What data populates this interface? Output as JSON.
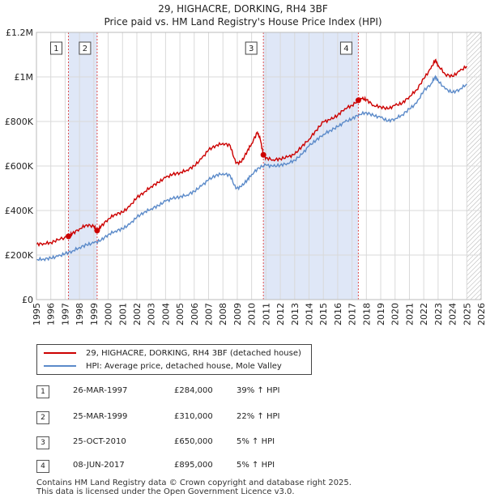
{
  "chart_data": {
    "type": "line",
    "title": "29, HIGHACRE, DORKING, RH4 3BF",
    "subtitle": "Price paid vs. HM Land Registry's House Price Index (HPI)",
    "xlim": [
      1995,
      2026
    ],
    "ylim": [
      0,
      1200000
    ],
    "x_ticks": [
      "1995",
      "1996",
      "1997",
      "1998",
      "1999",
      "2000",
      "2001",
      "2002",
      "2003",
      "2004",
      "2005",
      "2006",
      "2007",
      "2008",
      "2009",
      "2010",
      "2011",
      "2012",
      "2013",
      "2014",
      "2015",
      "2016",
      "2017",
      "2018",
      "2019",
      "2020",
      "2021",
      "2022",
      "2023",
      "2024",
      "2025",
      "2026"
    ],
    "y_ticks": [
      {
        "value": 0,
        "label": "£0"
      },
      {
        "value": 200000,
        "label": "£200K"
      },
      {
        "value": 400000,
        "label": "£400K"
      },
      {
        "value": 600000,
        "label": "£600K"
      },
      {
        "value": 800000,
        "label": "£800K"
      },
      {
        "value": 1000000,
        "label": "£1M"
      },
      {
        "value": 1200000,
        "label": "£1.2M"
      }
    ],
    "grid": true,
    "series": [
      {
        "name": "29, HIGHACRE, DORKING, RH4 3BF (detached house)",
        "color": "#cc0000",
        "x": [
          1995.0,
          1995.5,
          1996.0,
          1996.5,
          1997.23,
          1997.5,
          1998.0,
          1998.5,
          1999.0,
          1999.23,
          1999.5,
          2000.0,
          2000.5,
          2001.0,
          2001.5,
          2002.0,
          2002.5,
          2003.0,
          2003.5,
          2004.0,
          2004.5,
          2005.0,
          2005.5,
          2006.0,
          2006.5,
          2007.0,
          2007.5,
          2008.0,
          2008.5,
          2008.9,
          2009.3,
          2009.7,
          2010.0,
          2010.4,
          2010.6,
          2010.82,
          2011.0,
          2011.5,
          2012.0,
          2012.5,
          2013.0,
          2013.5,
          2014.0,
          2014.5,
          2015.0,
          2015.5,
          2016.0,
          2016.5,
          2017.0,
          2017.44,
          2017.7,
          2018.0,
          2018.5,
          2019.0,
          2019.5,
          2020.0,
          2020.5,
          2021.0,
          2021.5,
          2022.0,
          2022.5,
          2022.8,
          2023.0,
          2023.5,
          2024.0,
          2024.5,
          2025.0
        ],
        "y": [
          248000,
          252000,
          256000,
          268000,
          284000,
          296000,
          318000,
          336000,
          328000,
          310000,
          328000,
          362000,
          384000,
          392000,
          418000,
          458000,
          482000,
          508000,
          526000,
          548000,
          562000,
          570000,
          582000,
          600000,
          632000,
          672000,
          692000,
          702000,
          692000,
          612000,
          618000,
          668000,
          700000,
          752000,
          720000,
          650000,
          636000,
          628000,
          632000,
          640000,
          652000,
          688000,
          720000,
          760000,
          798000,
          808000,
          828000,
          858000,
          872000,
          895000,
          902000,
          898000,
          872000,
          866000,
          856000,
          872000,
          882000,
          912000,
          942000,
          992000,
          1038000,
          1076000,
          1052000,
          1012000,
          1002000,
          1026000,
          1048000
        ]
      },
      {
        "name": "HPI: Average price, detached house, Mole Valley",
        "color": "#5b8ac9",
        "x": [
          1995.0,
          1995.5,
          1996.0,
          1996.5,
          1997.0,
          1997.5,
          1998.0,
          1998.5,
          1999.0,
          1999.5,
          2000.0,
          2000.5,
          2001.0,
          2001.5,
          2002.0,
          2002.5,
          2003.0,
          2003.5,
          2004.0,
          2004.5,
          2005.0,
          2005.5,
          2006.0,
          2006.5,
          2007.0,
          2007.5,
          2008.0,
          2008.5,
          2008.9,
          2009.3,
          2009.7,
          2010.0,
          2010.5,
          2011.0,
          2011.5,
          2012.0,
          2012.5,
          2013.0,
          2013.5,
          2014.0,
          2014.5,
          2015.0,
          2015.5,
          2016.0,
          2016.5,
          2017.0,
          2017.5,
          2018.0,
          2018.5,
          2019.0,
          2019.5,
          2020.0,
          2020.5,
          2021.0,
          2021.5,
          2022.0,
          2022.5,
          2022.8,
          2023.0,
          2023.5,
          2024.0,
          2024.5,
          2025.0
        ],
        "y": [
          180000,
          182000,
          186000,
          194000,
          206000,
          218000,
          234000,
          246000,
          254000,
          266000,
          292000,
          308000,
          318000,
          338000,
          370000,
          392000,
          408000,
          422000,
          442000,
          454000,
          462000,
          470000,
          486000,
          510000,
          538000,
          558000,
          566000,
          558000,
          498000,
          508000,
          538000,
          562000,
          592000,
          604000,
          598000,
          604000,
          612000,
          626000,
          652000,
          690000,
          716000,
          742000,
          760000,
          776000,
          798000,
          812000,
          832000,
          840000,
          826000,
          818000,
          802000,
          812000,
          830000,
          856000,
          882000,
          938000,
          968000,
          1002000,
          982000,
          946000,
          930000,
          944000,
          968000
        ]
      }
    ],
    "transactions": [
      {
        "n": "1",
        "x": 1997.23,
        "price": 284000
      },
      {
        "n": "2",
        "x": 1999.23,
        "price": 310000
      },
      {
        "n": "3",
        "x": 2010.82,
        "price": 650000
      },
      {
        "n": "4",
        "x": 2017.44,
        "price": 895000
      }
    ],
    "shaded_periods": [
      [
        1997.23,
        1999.23
      ],
      [
        2010.82,
        2017.44
      ]
    ],
    "hatch_after": 2025.0
  },
  "legend": {
    "property_label": "29, HIGHACRE, DORKING, RH4 3BF (detached house)",
    "hpi_label": "HPI: Average price, detached house, Mole Valley"
  },
  "table": [
    {
      "n": "1",
      "date": "26-MAR-1997",
      "price": "£284,000",
      "hpi": "39% ↑ HPI"
    },
    {
      "n": "2",
      "date": "25-MAR-1999",
      "price": "£310,000",
      "hpi": "22% ↑ HPI"
    },
    {
      "n": "3",
      "date": "25-OCT-2010",
      "price": "£650,000",
      "hpi": "5% ↑ HPI"
    },
    {
      "n": "4",
      "date": "08-JUN-2017",
      "price": "£895,000",
      "hpi": "5% ↑ HPI"
    }
  ],
  "footer": {
    "line1": "Contains HM Land Registry data © Crown copyright and database right 2025.",
    "line2": "This data is licensed under the Open Government Licence v3.0."
  }
}
